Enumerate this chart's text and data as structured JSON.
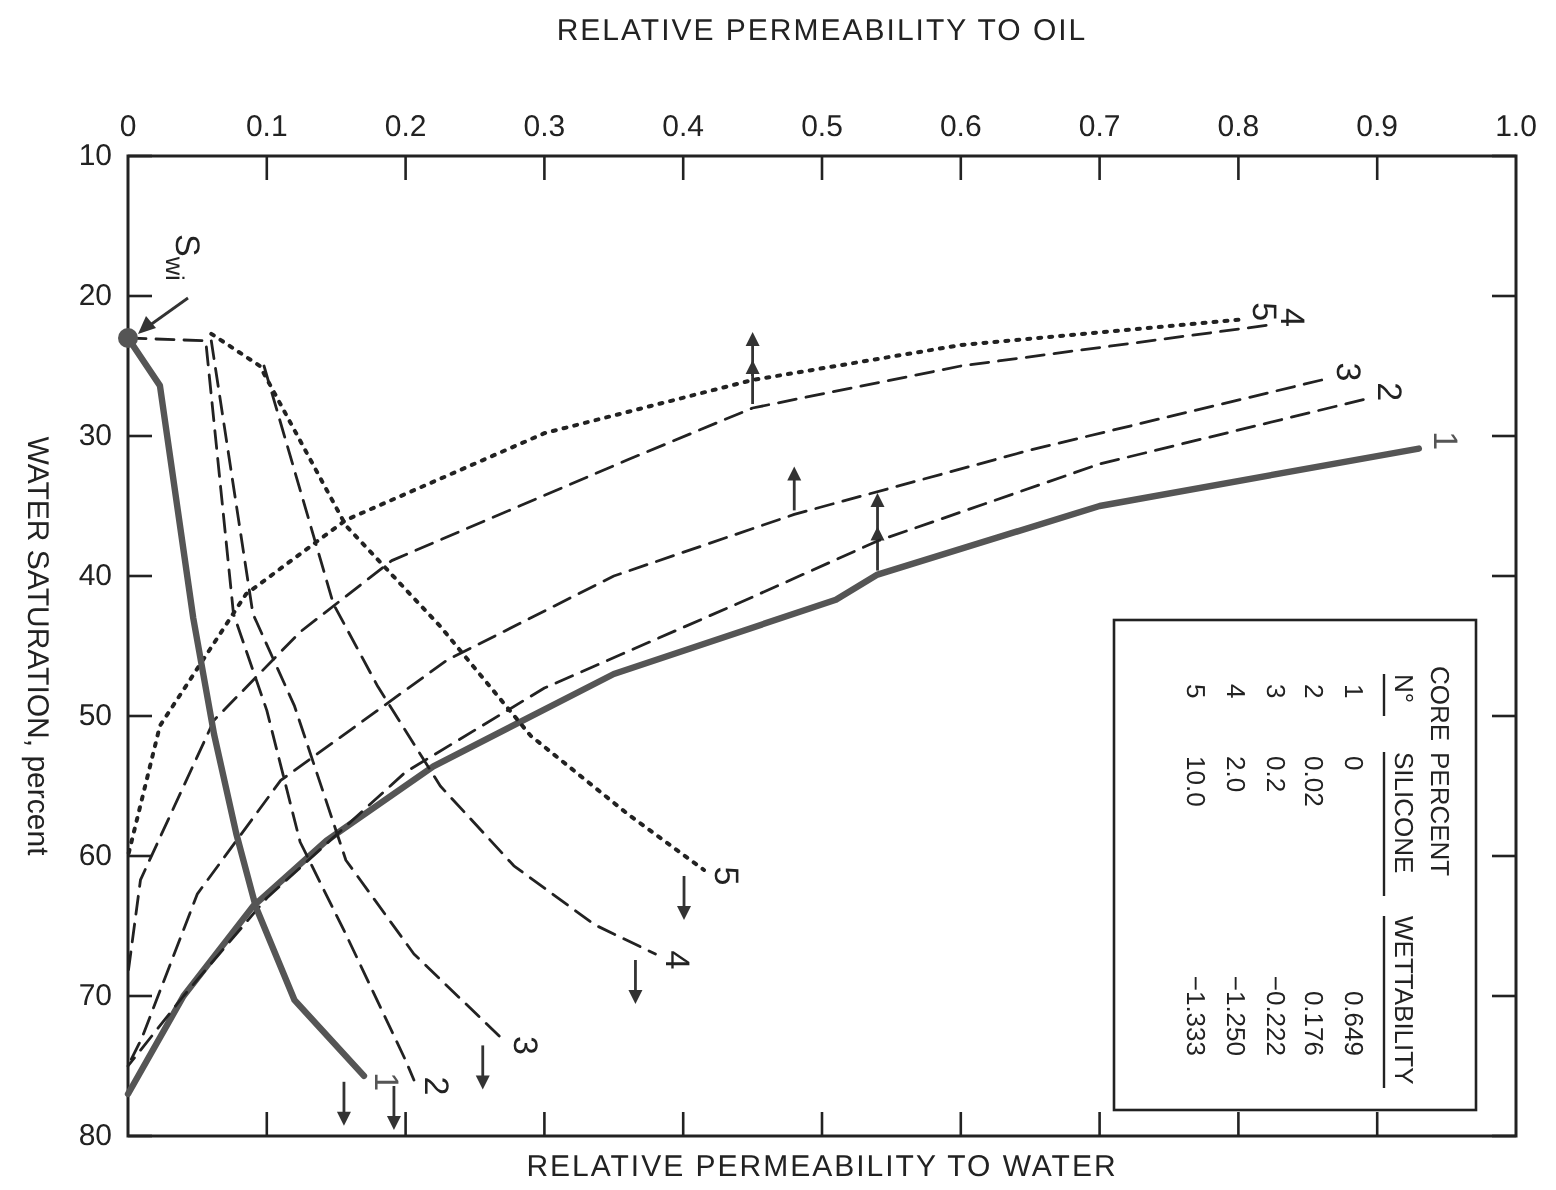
{
  "chart_data": {
    "type": "line",
    "xlabel": "RELATIVE PERMEABILITY TO OIL",
    "x2label": "RELATIVE PERMEABILITY TO WATER",
    "ylabel": "WATER SATURATION, percent",
    "xlim": [
      0,
      1
    ],
    "ylim": [
      80,
      10
    ],
    "xticks": [
      0,
      0.1,
      0.2,
      0.3,
      0.4,
      0.5,
      0.6,
      0.7,
      0.8,
      0.9,
      {
        "value": 1,
        "label": "1.0"
      }
    ],
    "yticks": [
      10,
      20,
      30,
      40,
      50,
      60,
      70,
      80
    ],
    "grid": false,
    "legend": false,
    "marker": "none",
    "series": [
      {
        "name": "1",
        "color": "#555555",
        "line_style": "solid",
        "x": [
          0.93,
          0.7,
          0.54,
          0.51,
          0.35,
          0.22,
          0.143,
          0.09,
          0.04,
          0
        ],
        "values": [
          30.9,
          35,
          39.9,
          41.7,
          47,
          53.6,
          58.9,
          63.6,
          70,
          77
        ]
      },
      {
        "name": "2",
        "color": "#222222",
        "line_style": "dashed",
        "x": [
          0.89,
          0.7,
          0.54,
          0.45,
          0.3,
          0.2,
          0.1,
          0.04,
          0
        ],
        "values": [
          27.4,
          32,
          37.5,
          41.5,
          48,
          54,
          63,
          70,
          75
        ]
      },
      {
        "name": "3",
        "color": "#222222",
        "line_style": "dashed",
        "x": [
          0.86,
          0.65,
          0.48,
          0.35,
          0.23,
          0.11,
          0.05,
          0.01,
          0
        ],
        "values": [
          26,
          31,
          35.6,
          40,
          46,
          54.6,
          62.7,
          73,
          75
        ]
      },
      {
        "name": "4",
        "color": "#222222",
        "line_style": "dashed",
        "x": [
          0.82,
          0.6,
          0.45,
          0.36,
          0.19,
          0.124,
          0.062,
          0.009,
          0
        ],
        "values": [
          22.1,
          25,
          28,
          31.7,
          38.9,
          44,
          50.3,
          61.7,
          68.4
        ]
      },
      {
        "name": "5",
        "color": "#222222",
        "line_style": "dotted",
        "x": [
          0.8,
          0.6,
          0.45,
          0.3,
          0.157,
          0.085,
          0.023,
          0
        ],
        "values": [
          21.7,
          23.5,
          26,
          29.8,
          36,
          41.3,
          50.7,
          60
        ]
      },
      {
        "name": "1",
        "color": "#555555",
        "line_style": "solid",
        "x": [
          0,
          0.023,
          0.047,
          0.062,
          0.078,
          0.092,
          0.12,
          0.17
        ],
        "values": [
          23,
          26.4,
          43,
          51.3,
          58.4,
          63.6,
          70.3,
          75.7
        ]
      },
      {
        "name": "2",
        "color": "#222222",
        "line_style": "dashed",
        "x": [
          0,
          0.056,
          0.076,
          0.1,
          0.124,
          0.157,
          0.2,
          0.206
        ],
        "values": [
          23,
          23.2,
          42.7,
          49.6,
          59,
          65.6,
          74.6,
          76
        ]
      },
      {
        "name": "3",
        "color": "#222222",
        "line_style": "dashed",
        "x": [
          0.06,
          0.09,
          0.12,
          0.157,
          0.206,
          0.27
        ],
        "values": [
          23.2,
          42.7,
          49.3,
          60.3,
          67,
          73.1
        ]
      },
      {
        "name": "4",
        "color": "#222222",
        "line_style": "dashed",
        "x": [
          0.098,
          0.148,
          0.18,
          0.225,
          0.278,
          0.336,
          0.38
        ],
        "values": [
          25,
          42,
          47.9,
          55,
          60.7,
          64.9,
          67
        ]
      },
      {
        "name": "5",
        "color": "#222222",
        "line_style": "dotted",
        "x": [
          0.06,
          0.095,
          0.157,
          0.225,
          0.29,
          0.36,
          0.415
        ],
        "values": [
          22.7,
          25,
          36.4,
          43.6,
          51.4,
          57,
          61
        ]
      },
      {
        "type": "scatter",
        "marker": "circle",
        "color": "#555555",
        "x": [
          0
        ],
        "values": [
          23
        ]
      }
    ],
    "annotations": [
      {
        "text": "S$_{wi}$",
        "x": 0,
        "y": 23
      },
      "CORE",
      "N°",
      "PERCENT",
      "SILICONE",
      "WETTABILITY",
      "1",
      "0",
      "0.649",
      "2",
      "0.02",
      "0.176",
      "3",
      "0.2",
      "−0.222",
      "4",
      "2.0",
      "−1.250",
      "5",
      "10.0",
      "−1.333"
    ]
  }
}
